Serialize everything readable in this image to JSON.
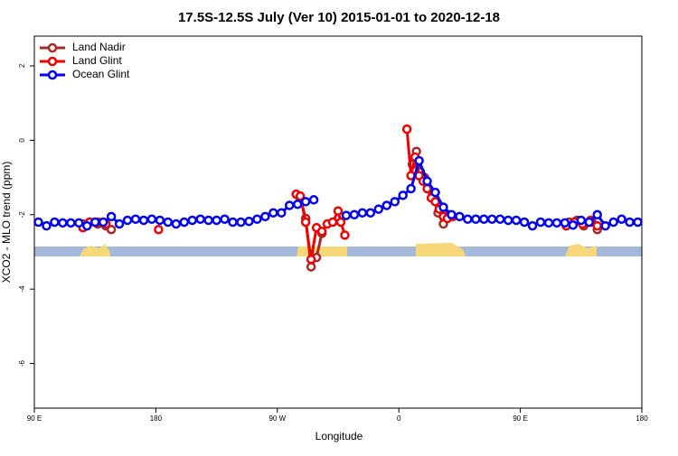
{
  "chart_data": {
    "type": "line",
    "title": "17.5S-12.5S July (Ver 10)   2015-01-01 to 2020-12-18",
    "x_label": "Longitude",
    "y_label": "XCO2 - MLO trend (ppm)",
    "xlim": [
      90,
      540
    ],
    "ylim": [
      -7.2,
      2.8
    ],
    "xticks": [
      {
        "value": 90,
        "label": "90 E"
      },
      180,
      {
        "value": 270,
        "label": "90 W"
      },
      {
        "value": 360,
        "label": "0"
      },
      {
        "value": 450,
        "label": "90 E"
      },
      {
        "value": 540,
        "label": "180"
      }
    ],
    "yticks": [
      -6,
      -4,
      -2,
      0,
      2
    ],
    "legend": "top-left",
    "series": [
      {
        "name": "Land Nadir",
        "color": "#a52a2a",
        "x": [
          126,
          131,
          137,
          143,
          147,
          155,
          284,
          287,
          291,
          295,
          299,
          303,
          310,
          370,
          373,
          376,
          379,
          382,
          385,
          389,
          393,
          397,
          402,
          486,
          492,
          497,
          503,
          507
        ],
        "values": [
          -2.25,
          -2.2,
          -2.25,
          -2.3,
          -2.4,
          null,
          -1.45,
          -1.55,
          -2.1,
          -3.4,
          -3.15,
          -2.5,
          null,
          -0.65,
          -0.3,
          -0.85,
          -1.0,
          -1.3,
          -1.45,
          -1.95,
          -2.25,
          -2.0,
          null,
          -2.2,
          -2.15,
          -2.3,
          -2.2,
          -2.4
        ]
      },
      {
        "name": "Land Glint",
        "color": "#ee0000",
        "x": [
          126,
          131,
          137,
          143,
          150,
          182,
          189,
          284,
          287,
          291,
          295,
          299,
          303,
          307,
          311,
          315,
          317,
          320,
          325,
          366,
          369,
          372,
          375,
          378,
          381,
          384,
          387,
          390,
          393,
          396,
          400,
          405,
          484,
          490,
          496,
          502,
          507
        ],
        "values": [
          -2.35,
          -2.2,
          -2.2,
          -2.25,
          null,
          -2.4,
          null,
          -1.45,
          -1.5,
          -2.2,
          -3.2,
          -2.35,
          -2.45,
          -2.25,
          -2.2,
          -1.9,
          -2.2,
          -2.55,
          null,
          0.3,
          -0.95,
          -0.45,
          -0.95,
          -1.1,
          -1.3,
          -1.55,
          -1.65,
          -1.85,
          -2.05,
          -2.1,
          -2.05,
          null,
          -2.3,
          -2.2,
          -2.25,
          -2.15,
          -2.3
        ]
      },
      {
        "name": "Ocean Glint",
        "color": "#0000ee",
        "x": [
          93,
          99,
          105,
          111,
          117,
          123,
          129,
          135,
          141,
          147,
          153,
          159,
          165,
          171,
          177,
          183,
          189,
          195,
          201,
          207,
          213,
          219,
          225,
          231,
          237,
          243,
          249,
          255,
          261,
          267,
          273,
          279,
          285,
          291,
          297,
          303,
          309,
          315,
          321,
          327,
          333,
          339,
          345,
          351,
          357,
          363,
          369,
          375,
          381,
          387,
          393,
          399,
          405,
          411,
          417,
          423,
          429,
          435,
          441,
          447,
          453,
          459,
          465,
          471,
          477,
          483,
          489,
          495,
          501,
          507,
          513,
          519,
          525,
          531,
          537
        ],
        "values": [
          -2.2,
          -2.3,
          -2.2,
          -2.22,
          -2.22,
          -2.22,
          -2.3,
          -2.2,
          -2.2,
          -2.05,
          -2.25,
          -2.15,
          -2.12,
          -2.15,
          -2.12,
          -2.15,
          -2.2,
          -2.25,
          -2.2,
          -2.15,
          -2.12,
          -2.15,
          -2.15,
          -2.12,
          -2.2,
          -2.2,
          -2.18,
          -2.12,
          -2.05,
          -1.95,
          -1.95,
          -1.75,
          -1.72,
          -1.65,
          -1.6,
          null,
          null,
          null,
          -2.02,
          -2.0,
          -1.95,
          -1.95,
          -1.85,
          -1.75,
          -1.65,
          -1.48,
          -1.3,
          -0.55,
          -1.1,
          -1.4,
          -1.8,
          -2.0,
          -2.05,
          -2.12,
          -2.12,
          -2.12,
          -2.12,
          -2.12,
          -2.15,
          -2.15,
          -2.2,
          -2.3,
          -2.2,
          -2.22,
          -2.22,
          -2.22,
          -2.28,
          -2.15,
          -2.2,
          -2.0,
          -2.3,
          -2.2,
          -2.12,
          -2.2,
          -2.2
        ]
      }
    ]
  }
}
